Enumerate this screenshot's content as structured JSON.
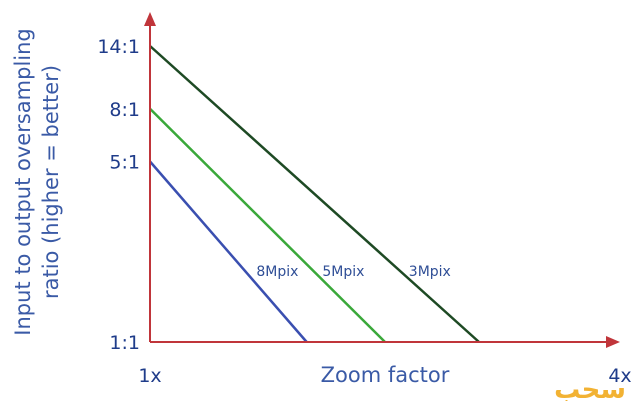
{
  "chart_data": {
    "type": "line",
    "xlabel": "Zoom factor",
    "ylabel_line1": "Input to output oversampling",
    "ylabel_line2": "ratio (higher = better)",
    "x_ticks": [
      "1x",
      "4x"
    ],
    "xlim": [
      1,
      4
    ],
    "y_scale": "log",
    "y_ticks": [
      {
        "label": "14:1",
        "value": 14
      },
      {
        "label": "8:1",
        "value": 8
      },
      {
        "label": "5:1",
        "value": 5
      },
      {
        "label": "1:1",
        "value": 1
      }
    ],
    "ylim": [
      1,
      14
    ],
    "series": [
      {
        "name": "8Mpix",
        "color": "#3a4fb0",
        "points": [
          [
            1,
            5
          ],
          [
            2.0,
            1
          ]
        ]
      },
      {
        "name": "5Mpix",
        "color": "#3aa83a",
        "points": [
          [
            1,
            8
          ],
          [
            2.5,
            1
          ]
        ]
      },
      {
        "name": "3Mpix",
        "color": "#1e4a24",
        "points": [
          [
            1,
            14
          ],
          [
            3.1,
            1
          ]
        ]
      }
    ],
    "axis_color": "#c0353a"
  },
  "watermark": {
    "text": "سحب"
  }
}
